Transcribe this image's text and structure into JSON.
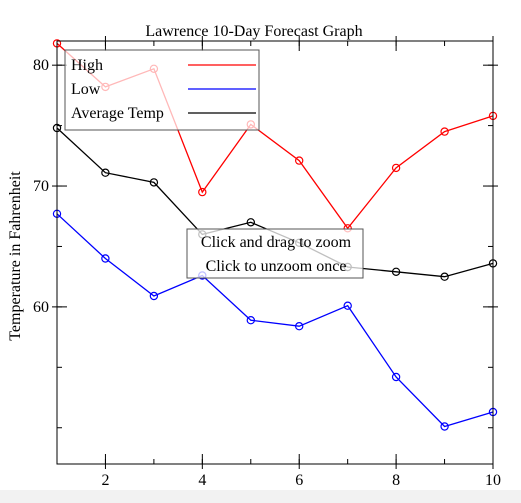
{
  "chart_data": {
    "type": "line",
    "title": "Lawrence 10-Day Forecast Graph",
    "xlabel": "",
    "ylabel": "Temperature in Fahrenheit",
    "xlim": [
      1,
      10
    ],
    "ylim": [
      47,
      82
    ],
    "x": [
      1,
      2,
      3,
      4,
      5,
      6,
      7,
      8,
      9,
      10
    ],
    "x_ticks": [
      2,
      4,
      6,
      8,
      10
    ],
    "y_ticks": [
      60,
      70,
      80
    ],
    "grid": false,
    "legend_position": "top-left",
    "markers": "open-circle",
    "series": [
      {
        "name": "High",
        "color": "#ff0000",
        "values": [
          81.8,
          78.2,
          79.7,
          69.5,
          75.1,
          72.1,
          66.5,
          71.5,
          74.5,
          75.8
        ]
      },
      {
        "name": "Low",
        "color": "#0000ff",
        "values": [
          67.7,
          64.0,
          60.9,
          62.6,
          58.9,
          58.4,
          60.1,
          54.2,
          50.1,
          51.3
        ]
      },
      {
        "name": "Average Temp",
        "color": "#000000",
        "values": [
          74.8,
          71.1,
          70.3,
          66.0,
          67.0,
          65.3,
          63.3,
          62.9,
          62.5,
          63.6
        ]
      }
    ],
    "hint_lines": [
      "Click and drag to zoom",
      "Click to unzoom once"
    ]
  }
}
